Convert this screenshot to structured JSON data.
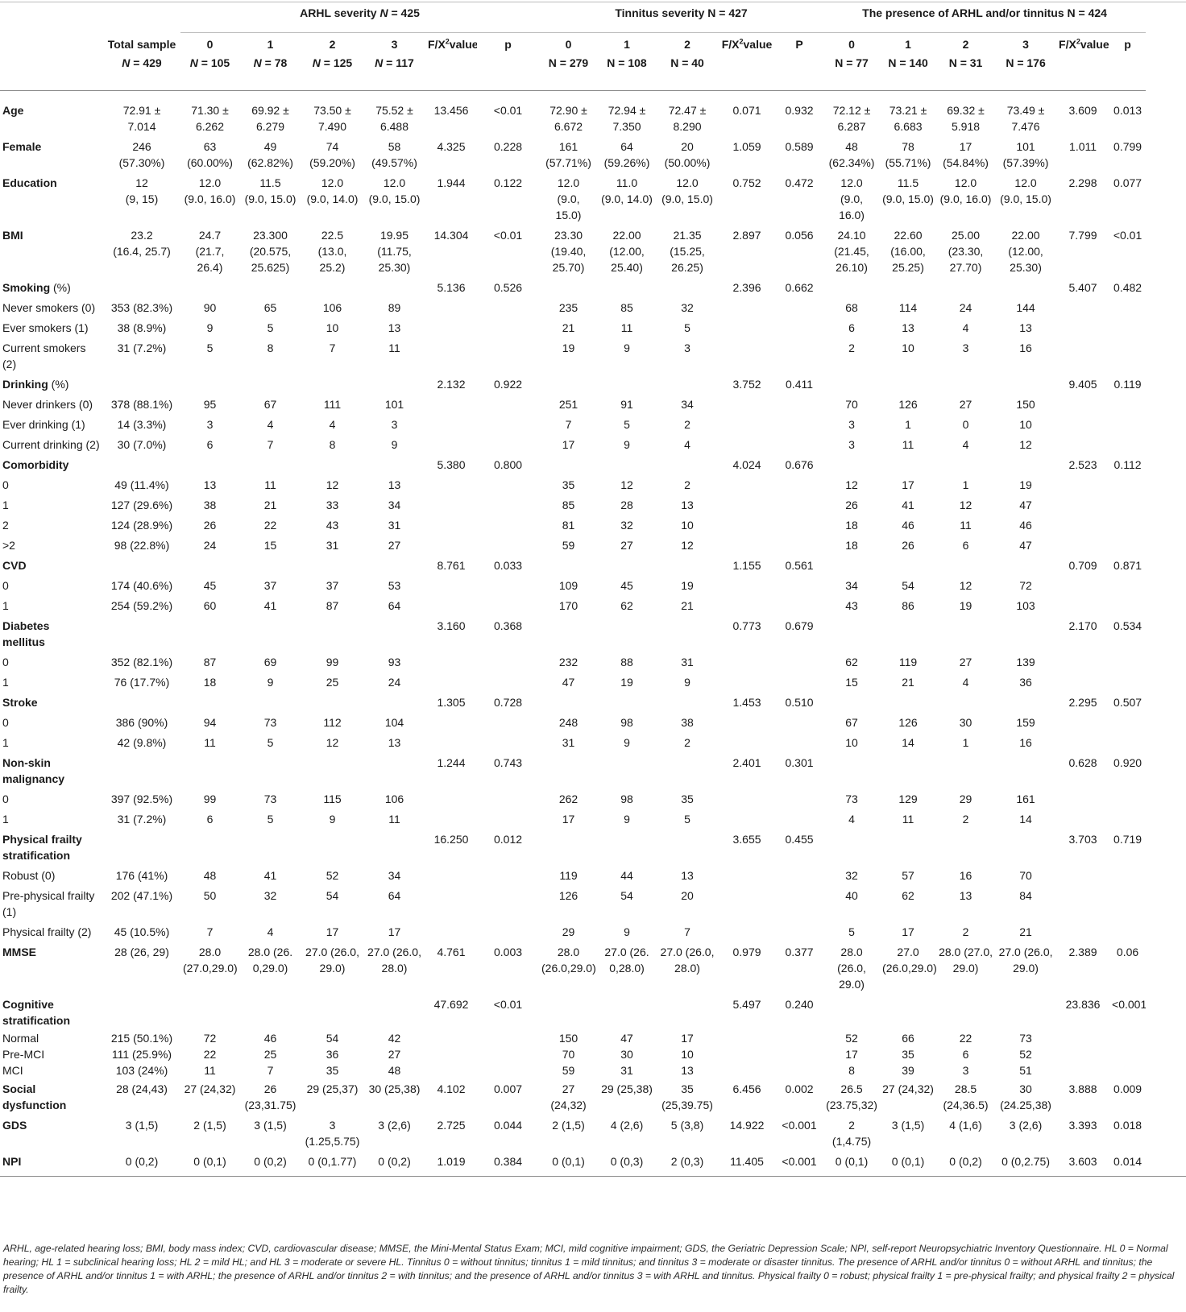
{
  "groups": {
    "arhl": "ARHL severity N = 425",
    "tinnitus": "Tinnitus severity N = 427",
    "presence": "The presence of ARHL and/or tinnitus N = 424"
  },
  "subheaders": {
    "total": "Total sample\nN = 429",
    "arhl": [
      "0\nN = 105",
      "1\nN = 78",
      "2\nN = 125",
      "3\nN = 117"
    ],
    "arhl_f": "F/X²value",
    "arhl_p": "p",
    "tin": [
      "0\nN = 279",
      "1\nN = 108",
      "2\nN = 40"
    ],
    "tin_f": "F/X²value",
    "tin_p": "P",
    "pres": [
      "0\nN = 77",
      "1\nN = 140",
      "2\nN = 31",
      "3\nN = 176"
    ],
    "pres_f": "F/X²value",
    "pres_p": "p"
  },
  "rows": [
    {
      "label": "Age",
      "bold": true,
      "v": [
        "72.91 ±\n7.014",
        "71.30 ±\n6.262",
        "69.92 ±\n6.279",
        "73.50 ±\n7.490",
        "75.52 ±\n6.488",
        "13.456",
        "<0.01",
        "72.90 ±\n6.672",
        "72.94 ±\n7.350",
        "72.47 ±\n8.290",
        "0.071",
        "0.932",
        "72.12 ±\n6.287",
        "73.21 ±\n6.683",
        "69.32 ±\n5.918",
        "73.49 ±\n7.476",
        "3.609",
        "0.013"
      ]
    },
    {
      "label": "Female",
      "bold": true,
      "v": [
        "246\n(57.30%)",
        "63\n(60.00%)",
        "49\n(62.82%)",
        "74\n(59.20%)",
        "58\n(49.57%)",
        "4.325",
        "0.228",
        "161\n(57.71%)",
        "64\n(59.26%)",
        "20\n(50.00%)",
        "1.059",
        "0.589",
        "48\n(62.34%)",
        "78\n(55.71%)",
        "17\n(54.84%)",
        "101\n(57.39%)",
        "1.011",
        "0.799"
      ]
    },
    {
      "label": "Education",
      "bold": true,
      "v": [
        "12\n(9, 15)",
        "12.0\n(9.0, 16.0)",
        "11.5\n(9.0, 15.0)",
        "12.0\n(9.0, 14.0)",
        "12.0\n(9.0, 15.0)",
        "1.944",
        "0.122",
        "12.0\n(9.0,\n15.0)",
        "11.0\n(9.0, 14.0)",
        "12.0\n(9.0, 15.0)",
        "0.752",
        "0.472",
        "12.0\n(9.0,\n16.0)",
        "11.5\n(9.0, 15.0)",
        "12.0\n(9.0, 16.0)",
        "12.0\n(9.0, 15.0)",
        "2.298",
        "0.077"
      ]
    },
    {
      "label": "BMI",
      "bold": true,
      "v": [
        "23.2\n(16.4, 25.7)",
        "24.7\n(21.7,\n26.4)",
        "23.300\n(20.575,\n25.625)",
        "22.5\n(13.0,\n25.2)",
        "19.95\n(11.75,\n25.30)",
        "14.304",
        "<0.01",
        "23.30\n(19.40,\n25.70)",
        "22.00\n(12.00,\n25.40)",
        "21.35\n(15.25,\n26.25)",
        "2.897",
        "0.056",
        "24.10\n(21.45,\n26.10)",
        "22.60\n(16.00,\n25.25)",
        "25.00\n(23.30,\n27.70)",
        "22.00\n(12.00,\n25.30)",
        "7.799",
        "<0.01"
      ]
    },
    {
      "label": "Smoking",
      "suffix": " (%)",
      "bold": true,
      "v": [
        "",
        "",
        "",
        "",
        "",
        "5.136",
        "0.526",
        "",
        "",
        "",
        "2.396",
        "0.662",
        "",
        "",
        "",
        "",
        "5.407",
        "0.482"
      ]
    },
    {
      "label": "Never smokers (0)",
      "v": [
        "353 (82.3%)",
        "90",
        "65",
        "106",
        "89",
        "",
        "",
        "235",
        "85",
        "32",
        "",
        "",
        "68",
        "114",
        "24",
        "144",
        "",
        ""
      ]
    },
    {
      "label": "Ever smokers (1)",
      "v": [
        "38 (8.9%)",
        "9",
        "5",
        "10",
        "13",
        "",
        "",
        "21",
        "11",
        "5",
        "",
        "",
        "6",
        "13",
        "4",
        "13",
        "",
        ""
      ]
    },
    {
      "label": "Current smokers\n(2)",
      "v": [
        "31 (7.2%)",
        "5",
        "8",
        "7",
        "11",
        "",
        "",
        "19",
        "9",
        "3",
        "",
        "",
        "2",
        "10",
        "3",
        "16",
        "",
        ""
      ]
    },
    {
      "label": "Drinking",
      "suffix": " (%)",
      "bold": true,
      "v": [
        "",
        "",
        "",
        "",
        "",
        "2.132",
        "0.922",
        "",
        "",
        "",
        "3.752",
        "0.411",
        "",
        "",
        "",
        "",
        "9.405",
        "0.119"
      ]
    },
    {
      "label": "Never drinkers (0)",
      "v": [
        "378 (88.1%)",
        "95",
        "67",
        "111",
        "101",
        "",
        "",
        "251",
        "91",
        "34",
        "",
        "",
        "70",
        "126",
        "27",
        "150",
        "",
        ""
      ]
    },
    {
      "label": "Ever drinking (1)",
      "v": [
        "14 (3.3%)",
        "3",
        "4",
        "4",
        "3",
        "",
        "",
        "7",
        "5",
        "2",
        "",
        "",
        "3",
        "1",
        "0",
        "10",
        "",
        ""
      ]
    },
    {
      "label": "Current drinking (2)",
      "v": [
        "30 (7.0%)",
        "6",
        "7",
        "8",
        "9",
        "",
        "",
        "17",
        "9",
        "4",
        "",
        "",
        "3",
        "11",
        "4",
        "12",
        "",
        ""
      ]
    },
    {
      "label": "Comorbidity",
      "bold": true,
      "v": [
        "",
        "",
        "",
        "",
        "",
        "5.380",
        "0.800",
        "",
        "",
        "",
        "4.024",
        "0.676",
        "",
        "",
        "",
        "",
        "2.523",
        "0.112"
      ]
    },
    {
      "label": "0",
      "v": [
        "49 (11.4%)",
        "13",
        "11",
        "12",
        "13",
        "",
        "",
        "35",
        "12",
        "2",
        "",
        "",
        "12",
        "17",
        "1",
        "19",
        "",
        ""
      ]
    },
    {
      "label": "1",
      "v": [
        "127 (29.6%)",
        "38",
        "21",
        "33",
        "34",
        "",
        "",
        "85",
        "28",
        "13",
        "",
        "",
        "26",
        "41",
        "12",
        "47",
        "",
        ""
      ]
    },
    {
      "label": "2",
      "v": [
        "124 (28.9%)",
        "26",
        "22",
        "43",
        "31",
        "",
        "",
        "81",
        "32",
        "10",
        "",
        "",
        "18",
        "46",
        "11",
        "46",
        "",
        ""
      ]
    },
    {
      "label": ">2",
      "v": [
        "98 (22.8%)",
        "24",
        "15",
        "31",
        "27",
        "",
        "",
        "59",
        "27",
        "12",
        "",
        "",
        "18",
        "26",
        "6",
        "47",
        "",
        ""
      ]
    },
    {
      "label": "CVD",
      "bold": true,
      "v": [
        "",
        "",
        "",
        "",
        "",
        "8.761",
        "0.033",
        "",
        "",
        "",
        "1.155",
        "0.561",
        "",
        "",
        "",
        "",
        "0.709",
        "0.871"
      ]
    },
    {
      "label": "0",
      "v": [
        "174 (40.6%)",
        "45",
        "37",
        "37",
        "53",
        "",
        "",
        "109",
        "45",
        "19",
        "",
        "",
        "34",
        "54",
        "12",
        "72",
        "",
        ""
      ]
    },
    {
      "label": "1",
      "v": [
        "254 (59.2%)",
        "60",
        "41",
        "87",
        "64",
        "",
        "",
        "170",
        "62",
        "21",
        "",
        "",
        "43",
        "86",
        "19",
        "103",
        "",
        ""
      ]
    },
    {
      "label": "Diabetes\nmellitus",
      "bold": true,
      "v": [
        "",
        "",
        "",
        "",
        "",
        "3.160",
        "0.368",
        "",
        "",
        "",
        "0.773",
        "0.679",
        "",
        "",
        "",
        "",
        "2.170",
        "0.534"
      ]
    },
    {
      "label": "0",
      "v": [
        "352 (82.1%)",
        "87",
        "69",
        "99",
        "93",
        "",
        "",
        "232",
        "88",
        "31",
        "",
        "",
        "62",
        "119",
        "27",
        "139",
        "",
        ""
      ]
    },
    {
      "label": "1",
      "v": [
        "76 (17.7%)",
        "18",
        "9",
        "25",
        "24",
        "",
        "",
        "47",
        "19",
        "9",
        "",
        "",
        "15",
        "21",
        "4",
        "36",
        "",
        ""
      ]
    },
    {
      "label": "Stroke",
      "bold": true,
      "v": [
        "",
        "",
        "",
        "",
        "",
        "1.305",
        "0.728",
        "",
        "",
        "",
        "1.453",
        "0.510",
        "",
        "",
        "",
        "",
        "2.295",
        "0.507"
      ]
    },
    {
      "label": "0",
      "v": [
        "386 (90%)",
        "94",
        "73",
        "112",
        "104",
        "",
        "",
        "248",
        "98",
        "38",
        "",
        "",
        "67",
        "126",
        "30",
        "159",
        "",
        ""
      ]
    },
    {
      "label": "1",
      "v": [
        "42 (9.8%)",
        "11",
        "5",
        "12",
        "13",
        "",
        "",
        "31",
        "9",
        "2",
        "",
        "",
        "10",
        "14",
        "1",
        "16",
        "",
        ""
      ]
    },
    {
      "label": "Non-skin\nmalignancy",
      "bold": true,
      "v": [
        "",
        "",
        "",
        "",
        "",
        "1.244",
        "0.743",
        "",
        "",
        "",
        "2.401",
        "0.301",
        "",
        "",
        "",
        "",
        "0.628",
        "0.920"
      ]
    },
    {
      "label": "0",
      "v": [
        "397 (92.5%)",
        "99",
        "73",
        "115",
        "106",
        "",
        "",
        "262",
        "98",
        "35",
        "",
        "",
        "73",
        "129",
        "29",
        "161",
        "",
        ""
      ]
    },
    {
      "label": "1",
      "v": [
        "31 (7.2%)",
        "6",
        "5",
        "9",
        "11",
        "",
        "",
        "17",
        "9",
        "5",
        "",
        "",
        "4",
        "11",
        "2",
        "14",
        "",
        ""
      ]
    },
    {
      "label": "Physical frailty\nstratification",
      "bold": true,
      "v": [
        "",
        "",
        "",
        "",
        "",
        "16.250",
        "0.012",
        "",
        "",
        "",
        "3.655",
        "0.455",
        "",
        "",
        "",
        "",
        "3.703",
        "0.719"
      ]
    },
    {
      "label": "Robust (0)",
      "v": [
        "176 (41%)",
        "48",
        "41",
        "52",
        "34",
        "",
        "",
        "119",
        "44",
        "13",
        "",
        "",
        "32",
        "57",
        "16",
        "70",
        "",
        ""
      ]
    },
    {
      "label": "Pre-physical frailty\n(1)",
      "v": [
        "202 (47.1%)",
        "50",
        "32",
        "54",
        "64",
        "",
        "",
        "126",
        "54",
        "20",
        "",
        "",
        "40",
        "62",
        "13",
        "84",
        "",
        ""
      ]
    },
    {
      "label": "Physical frailty (2)",
      "v": [
        "45 (10.5%)",
        "7",
        "4",
        "17",
        "17",
        "",
        "",
        "29",
        "9",
        "7",
        "",
        "",
        "5",
        "17",
        "2",
        "21",
        "",
        ""
      ]
    },
    {
      "label": "MMSE",
      "bold": true,
      "v": [
        "28 (26, 29)",
        "28.0\n(27.0,29.0)",
        "28.0 (26.\n0,29.0)",
        "27.0 (26.0,\n29.0)",
        "27.0 (26.0,\n28.0)",
        "4.761",
        "0.003",
        "28.0\n(26.0,29.0)",
        "27.0 (26.\n0,28.0)",
        "27.0 (26.0,\n28.0)",
        "0.979",
        "0.377",
        "28.0\n(26.0,\n29.0)",
        "27.0\n(26.0,29.0)",
        "28.0 (27.0,\n29.0)",
        "27.0 (26.0,\n29.0)",
        "2.389",
        "0.06"
      ]
    },
    {
      "label": "Cognitive\nstratification",
      "bold": true,
      "v": [
        "",
        "",
        "",
        "",
        "",
        "47.692",
        "<0.01",
        "",
        "",
        "",
        "5.497",
        "0.240",
        "",
        "",
        "",
        "",
        "23.836",
        "<0.001"
      ]
    },
    {
      "label": "Normal",
      "tight": true,
      "v": [
        "215 (50.1%)",
        "72",
        "46",
        "54",
        "42",
        "",
        "",
        "150",
        "47",
        "17",
        "",
        "",
        "52",
        "66",
        "22",
        "73",
        "",
        ""
      ]
    },
    {
      "label": "Pre-MCI",
      "tight": true,
      "v": [
        "111 (25.9%)",
        "22",
        "25",
        "36",
        "27",
        "",
        "",
        "70",
        "30",
        "10",
        "",
        "",
        "17",
        "35",
        "6",
        "52",
        "",
        ""
      ]
    },
    {
      "label": "MCI",
      "tight": true,
      "v": [
        "103 (24%)",
        "11",
        "7",
        "35",
        "48",
        "",
        "",
        "59",
        "31",
        "13",
        "",
        "",
        "8",
        "39",
        "3",
        "51",
        "",
        ""
      ]
    },
    {
      "label": "Social\ndysfunction",
      "bold": true,
      "v": [
        "28 (24,43)",
        "27 (24,32)",
        "26\n(23,31.75)",
        "29 (25,37)",
        "30 (25,38)",
        "4.102",
        "0.007",
        "27\n(24,32)",
        "29 (25,38)",
        "35\n(25,39.75)",
        "6.456",
        "0.002",
        "26.5\n(23.75,32)",
        "27 (24,32)",
        "28.5\n(24,36.5)",
        "30\n(24.25,38)",
        "3.888",
        "0.009"
      ]
    },
    {
      "label": "GDS",
      "bold": true,
      "v": [
        "3 (1,5)",
        "2 (1,5)",
        "3 (1,5)",
        "3\n(1.25,5.75)",
        "3 (2,6)",
        "2.725",
        "0.044",
        "2 (1,5)",
        "4 (2,6)",
        "5 (3,8)",
        "14.922",
        "<0.001",
        "2\n(1,4.75)",
        "3 (1,5)",
        "4 (1,6)",
        "3 (2,6)",
        "3.393",
        "0.018"
      ]
    },
    {
      "label": "NPI",
      "bold": true,
      "v": [
        "0 (0,2)",
        "0 (0,1)",
        "0 (0,2)",
        "0 (0,1.77)",
        "0 (0,2)",
        "1.019",
        "0.384",
        "0 (0,1)",
        "0 (0,3)",
        "2 (0,3)",
        "11.405",
        "<0.001",
        "0 (0,1)",
        "0 (0,1)",
        "0 (0,2)",
        "0 (0,2.75)",
        "3.603",
        "0.014"
      ]
    }
  ],
  "footnote": "ARHL, age-related hearing loss; BMI, body mass index; CVD, cardiovascular disease; MMSE, the Mini-Mental Status Exam; MCI, mild cognitive impairment; GDS, the Geriatric Depression Scale; NPI, self-report Neuropsychiatric Inventory Questionnaire. HL 0 = Normal hearing; HL 1 = subclinical hearing loss; HL 2 = mild HL; and HL 3 = moderate or severe HL. Tinnitus 0 = without tinnitus; tinnitus 1 = mild tinnitus; and tinnitus 3 = moderate or disaster tinnitus. The presence of ARHL and/or tinnitus 0 = without ARHL and tinnitus; the presence of ARHL and/or tinnitus 1 = with ARHL; the presence of ARHL and/or tinnitus 2 = with tinnitus; and the presence of ARHL and/or tinnitus 3 = with ARHL and tinnitus. Physical frailty 0 = robust; physical frailty 1 = pre-physical frailty; and physical frailty 2 = physical frailty."
}
